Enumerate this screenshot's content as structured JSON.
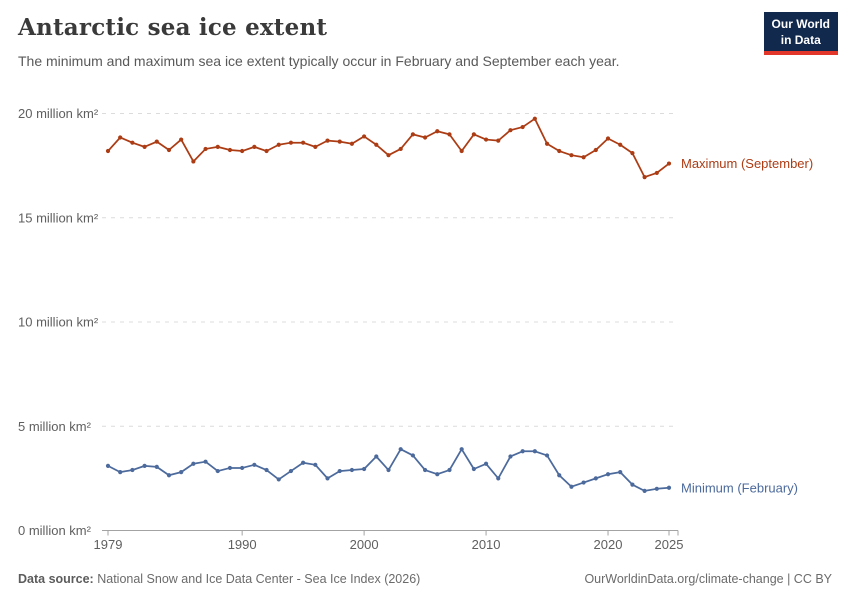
{
  "header": {
    "title": "Antarctic sea ice extent",
    "subtitle": "The minimum and maximum sea ice extent typically occur in February and September each year.",
    "logo": {
      "line1": "Our World",
      "line2": "in Data",
      "bg_color": "#12294E",
      "accent_color": "#E2362B"
    }
  },
  "chart_data": {
    "type": "line",
    "title": "Antarctic sea ice extent",
    "xlabel": "",
    "ylabel": "million km²",
    "xlim": [
      1979,
      2025
    ],
    "ylim": [
      0,
      20
    ],
    "grid": "horizontal-dashed",
    "legend_position": "right-of-line-end",
    "xticks": [
      1979,
      1990,
      2000,
      2010,
      2020,
      2025
    ],
    "yticks": [
      0,
      5,
      10,
      15,
      20
    ],
    "ytick_labels": [
      "0 million km²",
      "5 million km²",
      "10 million km²",
      "15 million km²",
      "20 million km²"
    ],
    "x": [
      1979,
      1980,
      1981,
      1982,
      1983,
      1984,
      1985,
      1986,
      1987,
      1988,
      1989,
      1990,
      1991,
      1992,
      1993,
      1994,
      1995,
      1996,
      1997,
      1998,
      1999,
      2000,
      2001,
      2002,
      2003,
      2004,
      2005,
      2006,
      2007,
      2008,
      2009,
      2010,
      2011,
      2012,
      2013,
      2014,
      2015,
      2016,
      2017,
      2018,
      2019,
      2020,
      2021,
      2022,
      2023,
      2024,
      2025
    ],
    "series": [
      {
        "name": "Maximum (September)",
        "color": "#AC3C14",
        "values": [
          18.2,
          18.85,
          18.6,
          18.4,
          18.65,
          18.25,
          18.75,
          17.7,
          18.3,
          18.4,
          18.25,
          18.2,
          18.4,
          18.2,
          18.5,
          18.6,
          18.6,
          18.4,
          18.7,
          18.65,
          18.55,
          18.9,
          18.5,
          18.0,
          18.3,
          19.0,
          18.85,
          19.15,
          19.0,
          18.2,
          19.0,
          18.75,
          18.7,
          19.2,
          19.35,
          19.75,
          18.55,
          18.2,
          18.0,
          17.9,
          18.25,
          18.8,
          18.5,
          18.1,
          16.95,
          17.15,
          17.6
        ]
      },
      {
        "name": "Minimum (February)",
        "color": "#4C6A9C",
        "values": [
          3.1,
          2.8,
          2.9,
          3.1,
          3.05,
          2.65,
          2.8,
          3.2,
          3.3,
          2.85,
          3.0,
          3.0,
          3.15,
          2.9,
          2.45,
          2.85,
          3.25,
          3.15,
          2.5,
          2.85,
          2.9,
          2.95,
          3.55,
          2.9,
          3.9,
          3.6,
          2.9,
          2.7,
          2.9,
          3.9,
          2.95,
          3.2,
          2.5,
          3.55,
          3.8,
          3.8,
          3.6,
          2.65,
          2.1,
          2.3,
          2.5,
          2.7,
          2.8,
          2.2,
          1.9,
          2.0,
          2.05
        ]
      }
    ],
    "colors": {
      "grid": "#dcdcdc",
      "axis": "#a3a3a3",
      "tick_text": "#5f5f5f"
    }
  },
  "footer": {
    "source_label": "Data source:",
    "source_text": "National Snow and Ice Data Center - Sea Ice Index (2026)",
    "right_text": "OurWorldinData.org/climate-change | CC BY"
  }
}
